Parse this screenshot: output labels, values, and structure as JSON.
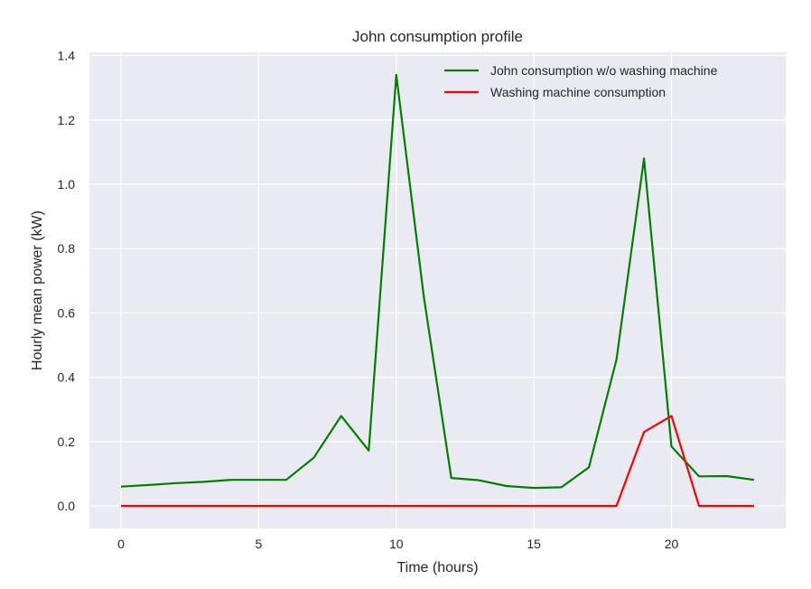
{
  "chart_data": {
    "type": "line",
    "title": "John consumption profile",
    "xlabel": "Time (hours)",
    "ylabel": "Hourly mean power (kW)",
    "xlim": [
      -1.15,
      24.15
    ],
    "ylim": [
      -0.07,
      1.41
    ],
    "xticks": [
      0,
      5,
      10,
      15,
      20
    ],
    "yticks": [
      0.0,
      0.2,
      0.4,
      0.6,
      0.8,
      1.0,
      1.2,
      1.4
    ],
    "xtick_labels": [
      "0",
      "5",
      "10",
      "15",
      "20"
    ],
    "ytick_labels": [
      "0.0",
      "0.2",
      "0.4",
      "0.6",
      "0.8",
      "1.0",
      "1.2",
      "1.4"
    ],
    "grid": true,
    "background_color": "#eaeaf2",
    "grid_color": "#ffffff",
    "legend_position": "top-right",
    "x": [
      0,
      1,
      2,
      3,
      4,
      5,
      6,
      7,
      8,
      9,
      10,
      11,
      12,
      13,
      14,
      15,
      16,
      17,
      18,
      19,
      20,
      21,
      22,
      23
    ],
    "series": [
      {
        "name": "John consumption w/o washing machine",
        "color": "#008000",
        "values": [
          0.06,
          0.065,
          0.071,
          0.075,
          0.081,
          0.081,
          0.081,
          0.15,
          0.28,
          0.172,
          1.34,
          0.65,
          0.087,
          0.08,
          0.062,
          0.056,
          0.058,
          0.12,
          0.455,
          1.08,
          0.185,
          0.092,
          0.093,
          0.081
        ]
      },
      {
        "name": "Washing machine consumption",
        "color": "#ff0000",
        "values": [
          0,
          0,
          0,
          0,
          0,
          0,
          0,
          0,
          0,
          0,
          0,
          0,
          0,
          0,
          0,
          0,
          0,
          0,
          0,
          0.23,
          0.28,
          0,
          0,
          0
        ]
      }
    ]
  }
}
